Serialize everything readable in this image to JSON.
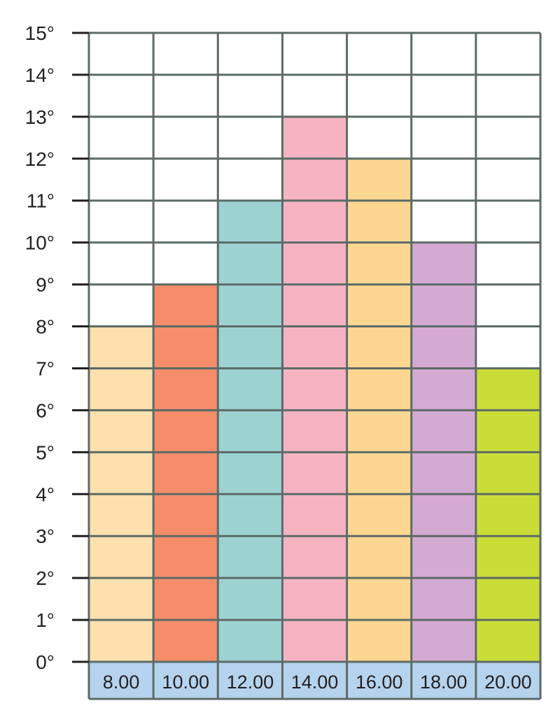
{
  "chart_data": {
    "type": "bar",
    "categories": [
      "8.00",
      "10.00",
      "12.00",
      "14.00",
      "16.00",
      "18.00",
      "20.00"
    ],
    "values": [
      8,
      9,
      11,
      13,
      12,
      10,
      7
    ],
    "bar_colors": [
      "#fde0ae",
      "#f58c6a",
      "#9dd2d3",
      "#f6b4c3",
      "#fdd791",
      "#d4aad2",
      "#cadd37"
    ],
    "y_tick_labels": [
      "0°",
      "1°",
      "2°",
      "3°",
      "4°",
      "5°",
      "6°",
      "7°",
      "8°",
      "9°",
      "10°",
      "11°",
      "12°",
      "13°",
      "14°",
      "15°"
    ],
    "ylim": [
      0,
      15
    ],
    "grid": true,
    "grid_color": "#5c6b66",
    "category_band_color": "#b6d3ee"
  }
}
